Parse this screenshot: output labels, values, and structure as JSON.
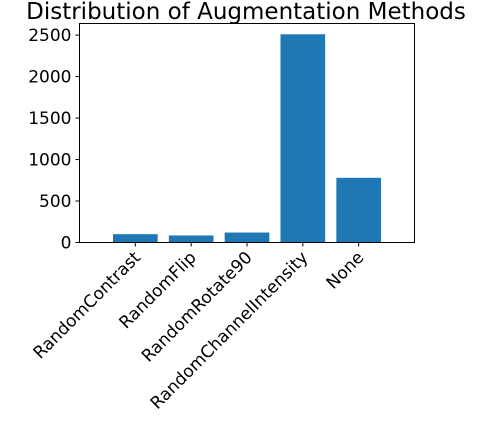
{
  "chart_data": {
    "type": "bar",
    "title": "Distribution of Augmentation Methods",
    "xlabel": "",
    "ylabel": "",
    "categories": [
      "RandomContrast",
      "RandomFlip",
      "RandomRotate90",
      "RandomChannelIntensity",
      "None"
    ],
    "values": [
      100,
      85,
      120,
      2510,
      780
    ],
    "ylim": [
      0,
      2640
    ],
    "yticks": [
      0,
      500,
      1000,
      1500,
      2000,
      2500
    ],
    "grid": false,
    "bar_color": "#1f77b4"
  }
}
